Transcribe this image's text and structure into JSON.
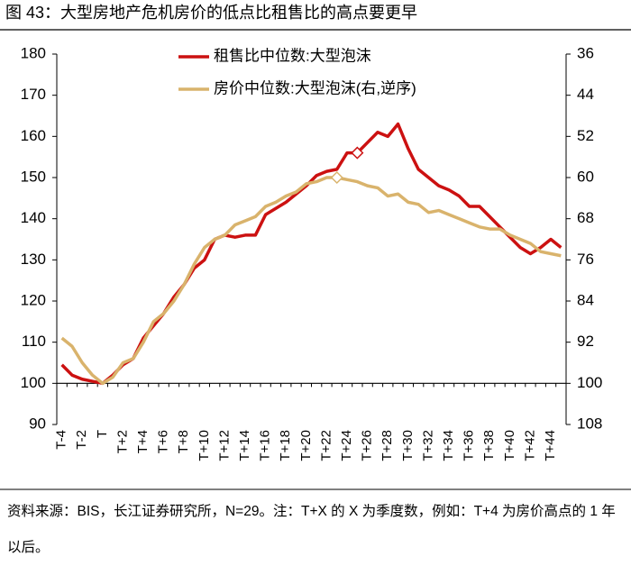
{
  "chart_data": {
    "type": "line",
    "title": "图 43：大型房地产危机房价的低点比租售比的高点要更早",
    "categories": [
      "T-4",
      null,
      "T-2",
      null,
      "T",
      null,
      "T+2",
      null,
      "T+4",
      null,
      "T+6",
      null,
      "T+8",
      null,
      "T+10",
      null,
      "T+12",
      null,
      "T+14",
      null,
      "T+16",
      null,
      "T+18",
      null,
      "T+20",
      null,
      "T+22",
      null,
      "T+24",
      null,
      "T+26",
      null,
      "T+28",
      null,
      "T+30",
      null,
      "T+32",
      null,
      "T+34",
      null,
      "T+36",
      null,
      "T+38",
      null,
      "T+40",
      null,
      "T+42",
      null,
      "T+44",
      null
    ],
    "series": [
      {
        "name": "租售比中位数:大型泡沫",
        "color": "#cc1111",
        "marker_index": 29,
        "values": [
          104.5,
          102,
          101,
          100.5,
          100,
          102,
          104.5,
          106,
          111,
          114,
          117,
          121,
          124,
          128,
          130,
          135,
          136,
          135.5,
          136,
          136,
          141,
          142.5,
          144,
          146,
          148,
          150.5,
          151.5,
          152,
          156,
          156,
          158.5,
          161,
          160,
          163,
          157,
          152,
          150,
          148,
          147,
          145.5,
          143,
          143,
          140.5,
          138,
          135.5,
          133,
          131.5,
          133,
          135,
          133
        ]
      },
      {
        "name": "房价中位数:大型泡沫(右,逆序)",
        "color": "#d9b36c",
        "axis": "y2",
        "marker_index": 27,
        "values": [
          91.2,
          92.8,
          96,
          98.4,
          100,
          98.8,
          96,
          95.2,
          92,
          88,
          86.4,
          84,
          80.8,
          76.8,
          73.6,
          72,
          71.2,
          69.2,
          68.4,
          67.6,
          65.6,
          64.8,
          63.6,
          62.8,
          61.2,
          60.8,
          60,
          60,
          60.4,
          60.8,
          61.6,
          62,
          63.6,
          63.2,
          64.8,
          65.2,
          66.8,
          66.4,
          67.2,
          68,
          68.8,
          69.6,
          70,
          70,
          71.2,
          72,
          72.8,
          74.4,
          74.8,
          75.2
        ]
      }
    ],
    "ylim": [
      90,
      180
    ],
    "yticks": [
      90,
      100,
      110,
      120,
      130,
      140,
      150,
      160,
      170,
      180
    ],
    "y2lim": [
      36,
      108
    ],
    "y2_inverted": true,
    "y2ticks": [
      36,
      44,
      52,
      60,
      68,
      76,
      84,
      92,
      100,
      108
    ],
    "x_axis_at": 100,
    "note": "资料来源：BIS，长江证券研究所，N=29。注：T+X 的 X 为季度数，例如：T+4 为房价高点的 1 年以后。"
  }
}
